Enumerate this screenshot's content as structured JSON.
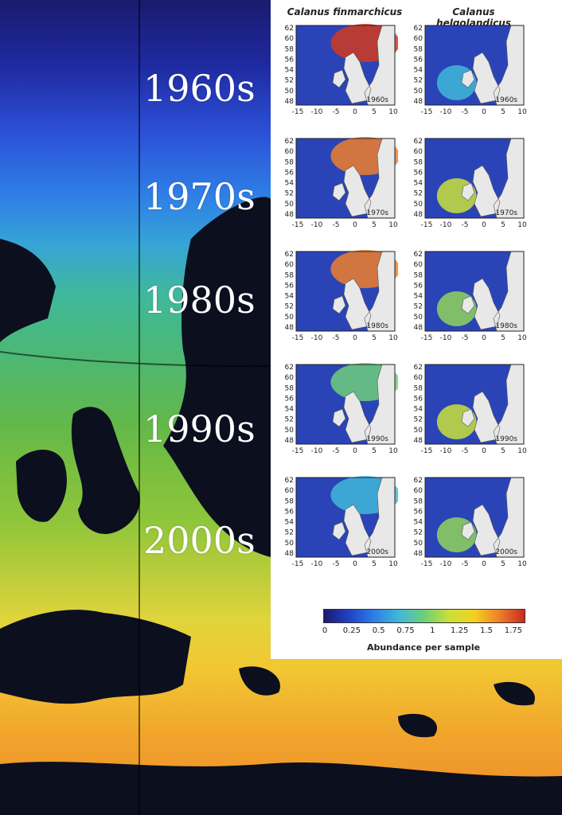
{
  "overlay_labels": [
    "1960s",
    "1970s",
    "1980s",
    "1990s",
    "2000s"
  ],
  "columns": [
    "Calanus finmarchicus",
    "Calanus helgolandicus"
  ],
  "panels": [
    {
      "decade": "1960s"
    },
    {
      "decade": "1970s"
    },
    {
      "decade": "1980s"
    },
    {
      "decade": "1990s"
    },
    {
      "decade": "2000s"
    }
  ],
  "y_ticks": [
    "62",
    "60",
    "58",
    "56",
    "54",
    "52",
    "50",
    "48"
  ],
  "x_ticks": [
    "-15",
    "-10",
    "-5",
    "0",
    "5",
    "10"
  ],
  "colorbar": {
    "ticks": [
      "0",
      "0.25",
      "0.5",
      "0.75",
      "1",
      "1.25",
      "1.5",
      "1.75"
    ],
    "label": "Abundance per sample"
  },
  "colors": {
    "deep_blue": "#1a1a6e",
    "mid_blue": "#2e7ee6",
    "green": "#63b84a",
    "yellow": "#f2c733",
    "orange": "#ee8a29",
    "red": "#c92a20",
    "land": "#e8e8e8",
    "dark_land": "#0b0f1e"
  }
}
